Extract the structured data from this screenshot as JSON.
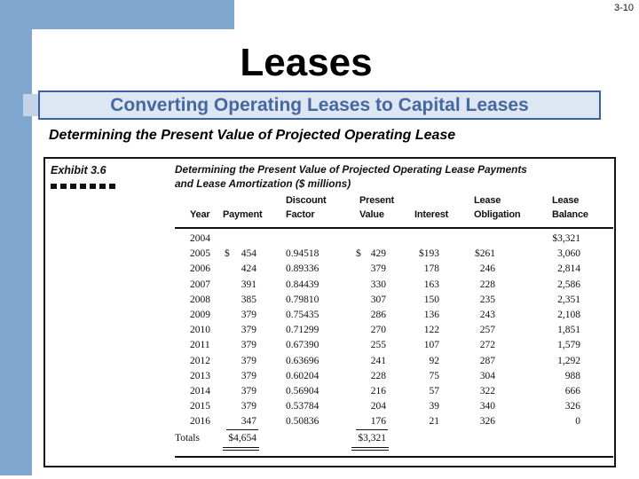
{
  "page": {
    "number": "3-10"
  },
  "slide": {
    "title": "Leases",
    "banner": "Converting Operating Leases to Capital Leases",
    "subtitle": "Determining the Present Value of Projected Operating Lease"
  },
  "exhibit": {
    "label": "Exhibit 3.6",
    "title_line1": "Determining the Present Value of Projected Operating Lease Payments",
    "title_line2": "and Lease Amortization ($ millions)",
    "headers": {
      "year": "Year",
      "payment": "Payment",
      "discount1": "Discount",
      "discount2": "Factor",
      "present1": "Present",
      "present2": "Value",
      "interest": "Interest",
      "lease_ob1": "Lease",
      "lease_ob2": "Obligation",
      "lease_bal1": "Lease",
      "lease_bal2": "Balance"
    },
    "rows": [
      [
        "2004",
        "",
        "",
        "",
        "",
        "",
        "",
        "",
        "$3,321"
      ],
      [
        "2005",
        "$",
        "454",
        "0.94518",
        "$",
        "429",
        "$193",
        "$261",
        "3,060"
      ],
      [
        "2006",
        "",
        "424",
        "0.89336",
        "",
        "379",
        "178",
        "246",
        "2,814"
      ],
      [
        "2007",
        "",
        "391",
        "0.84439",
        "",
        "330",
        "163",
        "228",
        "2,586"
      ],
      [
        "2008",
        "",
        "385",
        "0.79810",
        "",
        "307",
        "150",
        "235",
        "2,351"
      ],
      [
        "2009",
        "",
        "379",
        "0.75435",
        "",
        "286",
        "136",
        "243",
        "2,108"
      ],
      [
        "2010",
        "",
        "379",
        "0.71299",
        "",
        "270",
        "122",
        "257",
        "1,851"
      ],
      [
        "2011",
        "",
        "379",
        "0.67390",
        "",
        "255",
        "107",
        "272",
        "1,579"
      ],
      [
        "2012",
        "",
        "379",
        "0.63696",
        "",
        "241",
        "92",
        "287",
        "1,292"
      ],
      [
        "2013",
        "",
        "379",
        "0.60204",
        "",
        "228",
        "75",
        "304",
        "988"
      ],
      [
        "2014",
        "",
        "379",
        "0.56904",
        "",
        "216",
        "57",
        "322",
        "666"
      ],
      [
        "2015",
        "",
        "379",
        "0.53784",
        "",
        "204",
        "39",
        "340",
        "326"
      ],
      [
        "2016",
        "",
        "347",
        "0.50836",
        "",
        "176",
        "21",
        "326",
        "0"
      ]
    ],
    "totals": {
      "label": "Totals",
      "payment": "$4,654",
      "present_value": "$3,321"
    }
  },
  "colors": {
    "accent_blue": "#7fa7d0",
    "banner_fill": "#dce7f3",
    "banner_border": "#3d61a2",
    "banner_text": "#47689c",
    "tab_blue": "#c3d4e9"
  }
}
